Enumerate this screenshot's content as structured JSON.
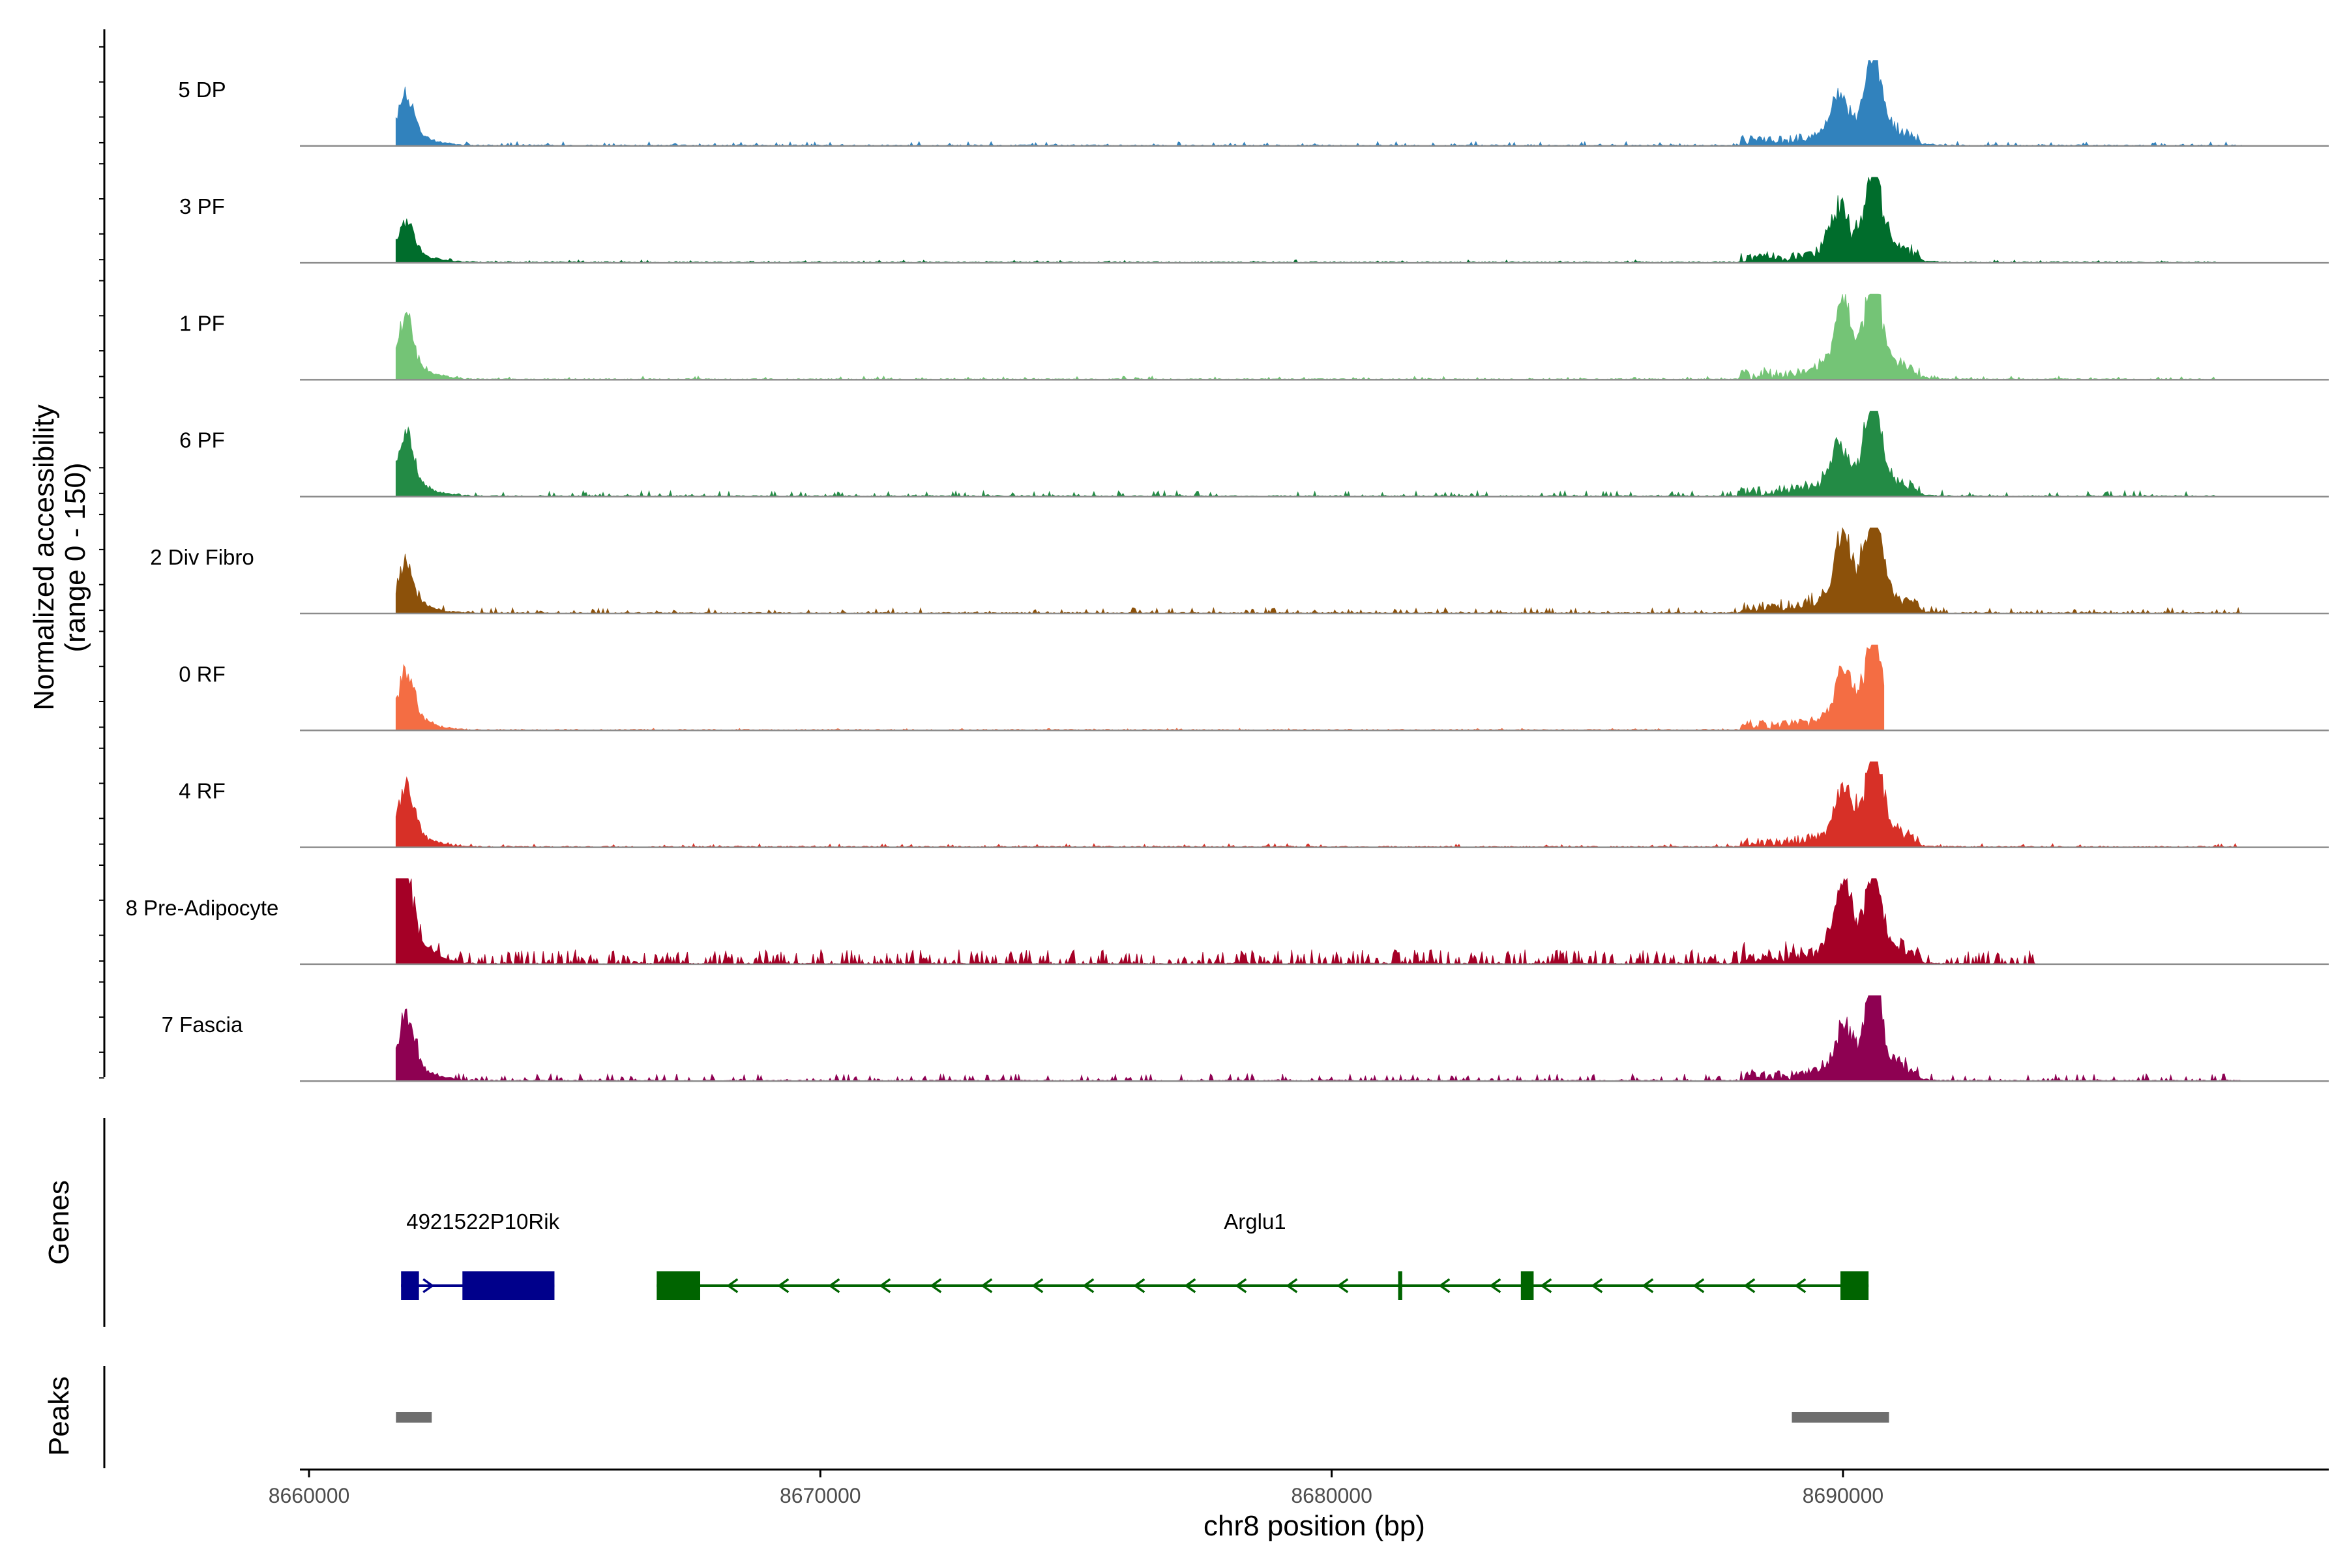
{
  "chart_data": {
    "type": "area",
    "subtype": "coverage-tracks",
    "tracks": [
      {
        "name": "5 DP",
        "color": "#3182BD",
        "peaks": [
          {
            "pos": 8661900,
            "h": 0.55
          },
          {
            "pos": 8689900,
            "h": 0.45
          },
          {
            "pos": 8690600,
            "h": 0.95
          }
        ],
        "noise": 0.06,
        "extent": [
          8661700,
          8697800
        ]
      },
      {
        "name": "3 PF",
        "color": "#006D2C",
        "peaks": [
          {
            "pos": 8661900,
            "h": 0.45
          },
          {
            "pos": 8689900,
            "h": 0.5
          },
          {
            "pos": 8690600,
            "h": 1.0
          }
        ],
        "noise": 0.04,
        "extent": [
          8661700,
          8697300
        ]
      },
      {
        "name": "1 PF",
        "color": "#74C476",
        "peaks": [
          {
            "pos": 8661900,
            "h": 0.65
          },
          {
            "pos": 8690000,
            "h": 0.7
          },
          {
            "pos": 8690600,
            "h": 1.0
          }
        ],
        "noise": 0.05,
        "extent": [
          8661700,
          8697300
        ]
      },
      {
        "name": "6 PF",
        "color": "#238B45",
        "peaks": [
          {
            "pos": 8661900,
            "h": 0.65
          },
          {
            "pos": 8689900,
            "h": 0.5
          },
          {
            "pos": 8690600,
            "h": 1.0
          }
        ],
        "noise": 0.08,
        "extent": [
          8661700,
          8697300
        ]
      },
      {
        "name": "2 Div Fibro",
        "color": "#8C510A",
        "peaks": [
          {
            "pos": 8661900,
            "h": 0.55
          },
          {
            "pos": 8690000,
            "h": 0.75
          },
          {
            "pos": 8690600,
            "h": 1.0
          }
        ],
        "noise": 0.08,
        "extent": [
          8661700,
          8697800
        ]
      },
      {
        "name": "0 RF",
        "color": "#F46D43",
        "peaks": [
          {
            "pos": 8661900,
            "h": 0.65
          },
          {
            "pos": 8690000,
            "h": 0.55
          },
          {
            "pos": 8690600,
            "h": 1.0
          }
        ],
        "noise": 0.03,
        "extent": [
          8661700,
          8690800
        ]
      },
      {
        "name": "4 RF",
        "color": "#D73027",
        "peaks": [
          {
            "pos": 8661900,
            "h": 0.65
          },
          {
            "pos": 8690000,
            "h": 0.5
          },
          {
            "pos": 8690600,
            "h": 1.0
          }
        ],
        "noise": 0.05,
        "extent": [
          8661700,
          8697700
        ]
      },
      {
        "name": "8 Pre-Adipocyte",
        "color": "#A50026",
        "peaks": [
          {
            "pos": 8661700,
            "h": 0.85
          },
          {
            "pos": 8661900,
            "h": 0.7
          },
          {
            "pos": 8690000,
            "h": 0.75
          },
          {
            "pos": 8690600,
            "h": 0.85
          }
        ],
        "noise": 0.2,
        "extent": [
          8661700,
          8693800
        ]
      },
      {
        "name": "7 Fascia",
        "color": "#8E0152",
        "peaks": [
          {
            "pos": 8661900,
            "h": 0.7
          },
          {
            "pos": 8690000,
            "h": 0.5
          },
          {
            "pos": 8690600,
            "h": 1.0
          }
        ],
        "noise": 0.1,
        "extent": [
          8661700,
          8697800
        ]
      }
    ],
    "genes": [
      {
        "name": "4921522P10Rik",
        "color": "#00008B",
        "start": 8661800,
        "end": 8664800,
        "strand": "+",
        "label_pos": 8663400,
        "exons": [
          [
            8661800,
            8662150
          ],
          [
            8663000,
            8664800
          ]
        ]
      },
      {
        "name": "Arglu1",
        "color": "#006400",
        "start": 8666800,
        "end": 8690500,
        "strand": "-",
        "label_pos": 8678500,
        "exons": [
          [
            8666800,
            8667650
          ],
          [
            8681300,
            8681380
          ],
          [
            8683700,
            8683950
          ],
          [
            8689950,
            8690500
          ]
        ]
      }
    ],
    "peaks": [
      [
        8661700,
        8662400
      ],
      [
        8689000,
        8690900
      ]
    ],
    "peaks_color": "#6E6E6E",
    "xlim": [
      8660000,
      8699500
    ],
    "xticks": [
      8660000,
      8670000,
      8680000,
      8690000
    ],
    "xtick_labels": [
      "8660000",
      "8670000",
      "8680000",
      "8690000"
    ],
    "xlabel": "chr8 position (bp)",
    "ylabel_line1": "Normalized accessibility",
    "ylabel_line2": "(range 0 - 150)",
    "genes_panel_label": "Genes",
    "peaks_panel_label": "Peaks",
    "ylim": [
      0,
      150
    ]
  }
}
